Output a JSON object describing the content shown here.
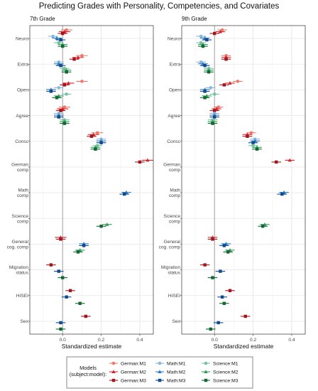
{
  "chart_data": {
    "type": "scatter",
    "title": "Predicting Grades with Personality, Competencies, and Covariates",
    "xlabel": "Standardized estimate",
    "ylabel": "",
    "xlim": [
      -0.17,
      0.47
    ],
    "xticks": [
      0.0,
      0.2,
      0.4
    ],
    "xtick_labels": [
      "0.0",
      "0.2",
      "0.4"
    ],
    "grid": true,
    "reference_line": 0,
    "categories": [
      "Neuro",
      "Extra",
      "Open",
      "Agree",
      "Consc",
      "German\ncomp",
      "Math\ncomp",
      "Science\ncomp",
      "General\ncog. comp",
      "Migration\nstatus",
      "HISEI",
      "Sex"
    ],
    "legend": {
      "title": "Models\n(subject:model):",
      "position": "bottom",
      "entries": [
        {
          "label": "German:M1",
          "color": "#f0776a",
          "shape": "circle"
        },
        {
          "label": "German:M2",
          "color": "#d7262a",
          "shape": "triangle"
        },
        {
          "label": "German:M3",
          "color": "#a6141b",
          "shape": "square"
        },
        {
          "label": "Math:M1",
          "color": "#88b6df",
          "shape": "circle"
        },
        {
          "label": "Math:M2",
          "color": "#2c7bc6",
          "shape": "triangle"
        },
        {
          "label": "Math:M3",
          "color": "#0d4a92",
          "shape": "square"
        },
        {
          "label": "Science:M1",
          "color": "#74c4a0",
          "shape": "circle"
        },
        {
          "label": "Science:M2",
          "color": "#2e9e57",
          "shape": "triangle"
        },
        {
          "label": "Science:M3",
          "color": "#0f6830",
          "shape": "square"
        }
      ]
    },
    "panels": [
      {
        "name": "7th Grade",
        "series": [
          {
            "model": "German:M1",
            "values": [
              0.02,
              0.1,
              0.1,
              0.01,
              0.18,
              null,
              null,
              null,
              null,
              null,
              null,
              null
            ],
            "ci": [
              0.03,
              0.03,
              0.03,
              0.03,
              0.03,
              null,
              null,
              null,
              null,
              null,
              null,
              null
            ]
          },
          {
            "model": "German:M2",
            "values": [
              0.01,
              0.08,
              0.03,
              0.0,
              0.16,
              0.44,
              null,
              null,
              -0.01,
              null,
              null,
              null
            ],
            "ci": [
              0.03,
              0.03,
              0.03,
              0.03,
              0.03,
              0.03,
              null,
              null,
              0.03,
              null,
              null,
              null
            ]
          },
          {
            "model": "German:M3",
            "values": [
              0.0,
              0.06,
              0.01,
              -0.01,
              0.15,
              0.4,
              null,
              null,
              -0.01,
              -0.06,
              0.04,
              0.12
            ]
          },
          {
            "model": "Math:M1",
            "values": [
              -0.05,
              -0.02,
              -0.02,
              -0.02,
              0.2,
              null,
              null,
              null,
              null,
              null,
              null,
              null
            ]
          },
          {
            "model": "Math:M2",
            "values": [
              -0.03,
              -0.02,
              -0.06,
              -0.02,
              0.2,
              null,
              0.33,
              null,
              0.11,
              null,
              null,
              null
            ]
          },
          {
            "model": "Math:M3",
            "values": [
              -0.01,
              -0.01,
              -0.06,
              -0.02,
              0.2,
              null,
              0.32,
              null,
              0.11,
              -0.02,
              0.02,
              -0.01
            ]
          },
          {
            "model": "Science:M1",
            "values": [
              -0.02,
              0.01,
              0.02,
              0.01,
              0.18,
              null,
              null,
              null,
              null,
              null,
              null,
              null
            ]
          },
          {
            "model": "Science:M2",
            "values": [
              0.0,
              0.02,
              -0.02,
              0.01,
              0.17,
              null,
              null,
              0.23,
              0.09,
              null,
              null,
              null
            ]
          },
          {
            "model": "Science:M3",
            "values": [
              0.0,
              0.02,
              -0.03,
              0.01,
              0.17,
              null,
              null,
              0.2,
              0.08,
              0.0,
              0.09,
              -0.01
            ]
          }
        ]
      },
      {
        "name": "9th Grade",
        "series": [
          {
            "model": "German:M1",
            "values": [
              0.04,
              0.06,
              0.12,
              0.02,
              0.19,
              null,
              null,
              null,
              null,
              null,
              null,
              null
            ]
          },
          {
            "model": "German:M2",
            "values": [
              0.03,
              0.06,
              0.08,
              0.01,
              0.17,
              0.39,
              null,
              null,
              -0.01,
              null,
              null,
              null
            ]
          },
          {
            "model": "German:M3",
            "values": [
              0.0,
              0.06,
              0.05,
              0.0,
              0.17,
              0.32,
              null,
              null,
              -0.01,
              -0.05,
              0.08,
              0.16
            ]
          },
          {
            "model": "Math:M1",
            "values": [
              -0.07,
              -0.07,
              -0.02,
              0.0,
              0.21,
              null,
              null,
              null,
              null,
              null,
              null,
              null
            ]
          },
          {
            "model": "Math:M2",
            "values": [
              -0.05,
              -0.06,
              -0.05,
              0.0,
              0.21,
              null,
              0.36,
              null,
              0.06,
              null,
              null,
              null
            ]
          },
          {
            "model": "Math:M3",
            "values": [
              -0.04,
              -0.05,
              -0.05,
              0.0,
              0.2,
              null,
              0.35,
              null,
              0.05,
              0.03,
              0.04,
              0.02
            ]
          },
          {
            "model": "Science:M1",
            "values": [
              -0.07,
              -0.03,
              0.0,
              -0.01,
              0.2,
              null,
              null,
              null,
              null,
              null,
              null,
              null
            ]
          },
          {
            "model": "Science:M2",
            "values": [
              -0.06,
              -0.03,
              -0.04,
              -0.01,
              0.22,
              null,
              null,
              0.26,
              0.08,
              null,
              null,
              null
            ]
          },
          {
            "model": "Science:M3",
            "values": [
              -0.06,
              -0.03,
              -0.05,
              -0.01,
              0.22,
              null,
              null,
              0.25,
              0.07,
              -0.01,
              0.05,
              -0.02
            ]
          }
        ]
      }
    ]
  }
}
